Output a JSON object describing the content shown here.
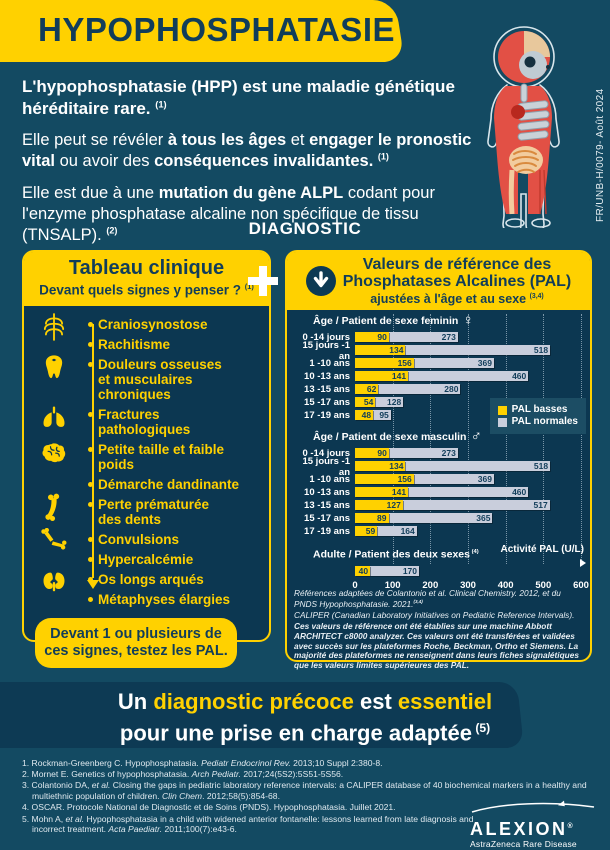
{
  "header": {
    "title": "HYPOPHOSPHATASIE",
    "side_code": "FR/UNB-H/0079- Août 2024"
  },
  "intro": {
    "p1": {
      "b1": "L'hypophosphatasie (HPP) est une maladie génétique héréditaire rare.",
      "sup": "(1)"
    },
    "p2": {
      "s1": "Elle peut se révéler ",
      "b1": "à tous les âges",
      "s2": " et ",
      "b2": "engager le pronostic vital",
      "s3": " ou avoir des ",
      "b3": "conséquences invalidantes",
      "s4": ".",
      "sup": "(1)"
    },
    "p3": {
      "s1": "Elle est due à une ",
      "b1": "mutation du gène ALPL",
      "s2": " codant pour l'enzyme phosphatase alcaline non spécifique de tissu (TNSALP).",
      "sup": "(2)"
    }
  },
  "diagnostic_heading": "DIAGNOSTIC",
  "clinical_box": {
    "title": "Tableau clinique",
    "subtitle": "Devant quels signes y penser ?",
    "subtitle_sup": "(1)",
    "symptoms": [
      {
        "icon": "ribcage-icon",
        "label": "Craniosynostose"
      },
      {
        "icon": null,
        "label": "Rachitisme"
      },
      {
        "icon": "tooth-icon",
        "label": "Douleurs osseuses\net musculaires chroniques"
      },
      {
        "icon": "lungs-icon",
        "label": "Fractures\npathologiques"
      },
      {
        "icon": "brain-icon",
        "label": "Petite taille et faible poids"
      },
      {
        "icon": null,
        "label": "Démarche dandinante"
      },
      {
        "icon": "femur-icon",
        "label": "Perte prématurée\ndes dents"
      },
      {
        "icon": "bone-joint-icon",
        "label": "Convulsions"
      },
      {
        "icon": null,
        "label": "Hypercalcémie"
      },
      {
        "icon": "kidneys-icon",
        "label": "Os longs arqués"
      },
      {
        "icon": null,
        "label": "Métaphyses élargies"
      }
    ],
    "callout": {
      "line1": "Devant 1 ou plusieurs de",
      "line2_normal": "ces signes, ",
      "line2_bold": "testez les PAL."
    }
  },
  "pal_box": {
    "title_line1": "Valeurs de référence des",
    "title_line2": "Phosphatases Alcalines (PAL)",
    "subtitle": "ajustées à l'âge et au sexe",
    "subtitle_sup": "(3,4)",
    "axis": {
      "ticks": [
        0,
        100,
        200,
        300,
        400,
        500,
        600
      ],
      "label": "Activité PAL (U/L)"
    },
    "legend": [
      {
        "label": "PAL basses",
        "color": "#FFD100"
      },
      {
        "label": "PAL normales",
        "color": "#C9CEDC"
      }
    ],
    "footnotes": [
      {
        "text": "Références adaptées de Colantonio et al. Clinical Chemistry. 2012, et du PNDS Hypophosphatasie. 2021.",
        "sup": "(3,4)",
        "bold": false
      },
      {
        "text": "CALIPER (Canadian Laboratory Initiatives on Pediatric Reference Intervals).",
        "sup": "",
        "bold": false
      },
      {
        "text": "Ces valeurs de référence ont été établies sur une machine Abbott ARCHITECT c8000 analyzer. Ces valeurs ont été transférées et validées avec succès sur les plateformes Roche, Beckman, Ortho et Siemens. La majorité des plateformes ne renseignent dans leurs fiches signalétiques que les valeurs limites supérieures des PAL.",
        "sup": "",
        "bold": true
      }
    ]
  },
  "chart_data": {
    "type": "bar",
    "orientation": "horizontal",
    "xlim": [
      0,
      600
    ],
    "xlabel": "Activité PAL (U/L)",
    "ticks": [
      0,
      100,
      200,
      300,
      400,
      500,
      600
    ],
    "groups": [
      {
        "id": "female",
        "title": "Âge / Patient de sexe feminin",
        "symbol": "♀",
        "categories": [
          "0 -14 jours",
          "15 jours -1 an",
          "1 -10 ans",
          "10 -13 ans",
          "13 -15 ans",
          "15 -17 ans",
          "17 -19 ans"
        ],
        "series": [
          {
            "name": "PAL basses",
            "values": [
              90,
              134,
              156,
              141,
              62,
              54,
              48
            ]
          },
          {
            "name": "PAL normales",
            "values": [
              273,
              518,
              369,
              460,
              280,
              128,
              95
            ]
          }
        ]
      },
      {
        "id": "male",
        "title": "Âge / Patient de sexe masculin",
        "symbol": "♂",
        "categories": [
          "0 -14 jours",
          "15 jours -1 an",
          "1 -10 ans",
          "10 -13 ans",
          "13 -15 ans",
          "15 -17 ans",
          "17 -19 ans"
        ],
        "series": [
          {
            "name": "PAL basses",
            "values": [
              90,
              134,
              156,
              141,
              127,
              89,
              59
            ]
          },
          {
            "name": "PAL normales",
            "values": [
              273,
              518,
              369,
              460,
              517,
              365,
              164
            ]
          }
        ]
      },
      {
        "id": "adult",
        "title": "Adulte / Patient des deux sexes",
        "title_sup": "(4)",
        "symbol": "",
        "categories": [
          ""
        ],
        "series": [
          {
            "name": "PAL basses",
            "values": [
              40
            ]
          },
          {
            "name": "PAL normales",
            "values": [
              170
            ]
          }
        ]
      }
    ]
  },
  "banner": {
    "line1": [
      {
        "text": "Un ",
        "color": "white"
      },
      {
        "text": "diagnostic précoce",
        "color": "yellow"
      },
      {
        "text": " est ",
        "color": "white"
      },
      {
        "text": "essentiel",
        "color": "yellow"
      }
    ],
    "line2": [
      {
        "text": "pour une prise en charge adaptée",
        "color": "white"
      }
    ],
    "line2_sup": "(5)"
  },
  "references": [
    [
      {
        "text": "1. Rockman-Greenberg C. Hypophosphatasia. "
      },
      {
        "text": "Pediatr Endocrinol Rev.",
        "italic": true
      },
      {
        "text": " 2013;10 Suppl 2:380-8."
      }
    ],
    [
      {
        "text": "2. Mornet E. Genetics of hypophosphatasia. "
      },
      {
        "text": "Arch Pediatr.",
        "italic": true
      },
      {
        "text": " 2017;24(5S2):5S51-5S56."
      }
    ],
    [
      {
        "text": "3. Colantonio DA, "
      },
      {
        "text": "et al.",
        "italic": true
      },
      {
        "text": " Closing the gaps in pediatric laboratory reference intervals: a CALIPER database of 40 biochemical markers in a healthy and multiethnic population of children. "
      },
      {
        "text": "Clin Chem",
        "italic": true
      },
      {
        "text": ". 2012;58(5):854-68."
      }
    ],
    [
      {
        "text": "4. OSCAR. Protocole National de Diagnostic et de Soins (PNDS). Hypophosphatasia. Juillet 2021."
      }
    ],
    [
      {
        "text": "5. Mohn A, "
      },
      {
        "text": "et al.",
        "italic": true
      },
      {
        "text": " Hypophosphatasia in a child with widened anterior fontanelle: lessons learned from late diagnosis and incorrect treatment. "
      },
      {
        "text": "Acta Paediatr.",
        "italic": true
      },
      {
        "text": " 2011;100(7):e43-6."
      }
    ]
  ],
  "logo": {
    "brand": "ALEXION",
    "reg": "®",
    "sub": "AstraZeneca Rare Disease"
  }
}
